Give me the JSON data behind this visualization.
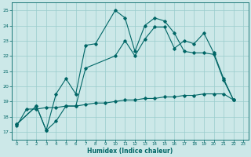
{
  "xlabel": "Humidex (Indice chaleur)",
  "ylabel": "",
  "bg_color": "#cce8e8",
  "grid_color": "#99cccc",
  "line_color": "#006666",
  "xlim": [
    -0.5,
    23.5
  ],
  "ylim": [
    16.5,
    25.5
  ],
  "xtick_vals": [
    0,
    1,
    2,
    3,
    4,
    5,
    6,
    7,
    8,
    9,
    10,
    11,
    12,
    13,
    14,
    15,
    16,
    17,
    18,
    19,
    20,
    21,
    22,
    23
  ],
  "xtick_labels": [
    "0",
    "1",
    "2",
    "3",
    "4",
    "5",
    "6",
    "7",
    "8",
    "9",
    "10",
    "11",
    "12",
    "13",
    "14",
    "15",
    "16",
    "17",
    "18",
    "19",
    "20",
    "21",
    "22",
    "23"
  ],
  "yticks": [
    17,
    18,
    19,
    20,
    21,
    22,
    23,
    24,
    25
  ],
  "curve1_x": [
    0,
    2,
    3,
    4,
    5,
    6,
    7,
    10,
    11,
    12,
    13,
    14,
    15,
    16,
    17,
    18,
    19,
    20,
    21,
    22
  ],
  "curve1_y": [
    17.5,
    18.7,
    17.1,
    17.7,
    18.7,
    18.7,
    21.2,
    22.0,
    23.0,
    22.0,
    23.1,
    23.9,
    23.9,
    22.5,
    23.0,
    22.8,
    23.5,
    22.2,
    20.5,
    19.1
  ],
  "curve2_x": [
    0,
    2,
    3,
    4,
    5,
    6,
    7,
    8,
    10,
    11,
    12,
    13,
    14,
    15,
    16,
    17,
    18,
    19,
    20,
    21,
    22
  ],
  "curve2_y": [
    17.5,
    18.7,
    17.1,
    19.5,
    20.5,
    19.5,
    22.7,
    22.8,
    25.0,
    24.5,
    22.3,
    24.0,
    24.5,
    24.3,
    23.5,
    22.3,
    22.2,
    22.2,
    22.1,
    20.4,
    19.1
  ],
  "curve3_x": [
    0,
    1,
    2,
    3,
    4,
    5,
    6,
    7,
    8,
    9,
    10,
    11,
    12,
    13,
    14,
    15,
    16,
    17,
    18,
    19,
    20,
    21,
    22
  ],
  "curve3_y": [
    17.4,
    18.5,
    18.5,
    18.6,
    18.6,
    18.7,
    18.7,
    18.8,
    18.9,
    18.9,
    19.0,
    19.1,
    19.1,
    19.2,
    19.2,
    19.3,
    19.3,
    19.4,
    19.4,
    19.5,
    19.5,
    19.5,
    19.1
  ]
}
